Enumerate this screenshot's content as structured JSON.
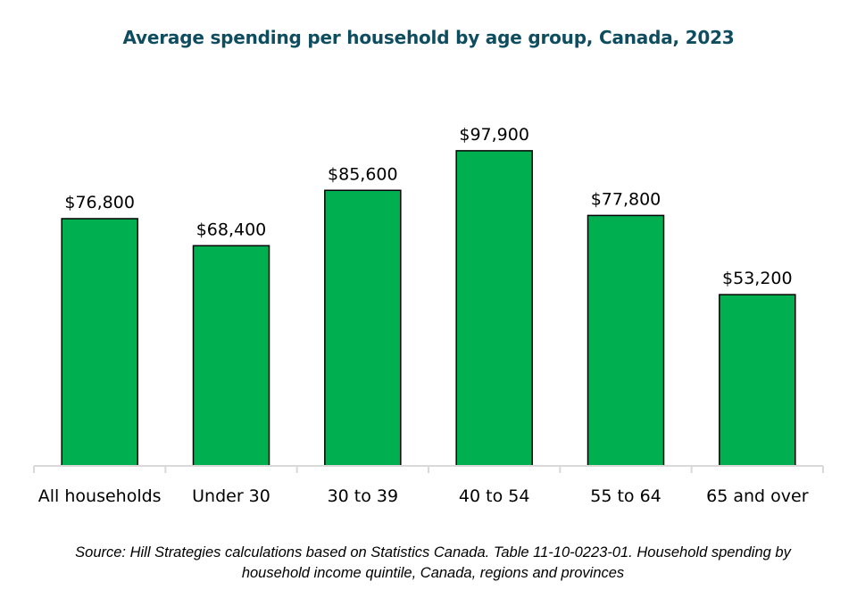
{
  "chart_data": {
    "type": "bar",
    "title": "Average spending per household by age group, Canada, 2023",
    "categories": [
      "All households",
      "Under 30",
      "30 to 39",
      "40 to 54",
      "55 to 64",
      "65 and over"
    ],
    "values": [
      76800,
      68400,
      85600,
      97900,
      77800,
      53200
    ],
    "data_labels": [
      "$76,800",
      "$68,400",
      "$85,600",
      "$97,900",
      "$77,800",
      "$53,200"
    ],
    "xlabel": "",
    "ylabel": "",
    "ylim": [
      0,
      100000
    ],
    "y_axis_visible": false,
    "grid": false,
    "legend": "none",
    "colors": {
      "bar": "#00b050",
      "bar_border": "#000000",
      "title": "#0e4d5f",
      "axis": "#d9d9d9"
    }
  },
  "source_note": "Source: Hill Strategies calculations based on Statistics Canada. Table 11-10-0223-01. Household spending by household income quintile, Canada, regions and provinces"
}
